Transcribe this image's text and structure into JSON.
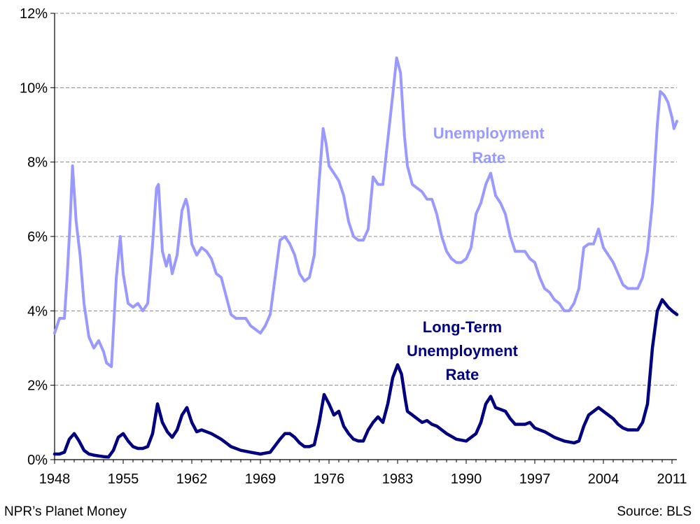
{
  "chart_data": {
    "type": "line",
    "title": "",
    "xlabel": "",
    "ylabel": "",
    "xlim": [
      1948,
      2011.5
    ],
    "ylim": [
      0,
      12
    ],
    "y_ticks": [
      "0%",
      "2%",
      "4%",
      "6%",
      "8%",
      "10%",
      "12%"
    ],
    "x_ticks": [
      "1948",
      "1955",
      "1962",
      "1969",
      "1976",
      "1983",
      "1990",
      "1997",
      "2004",
      "2011"
    ],
    "grid": "horizontal dashed",
    "series": [
      {
        "name": "Unemployment Rate",
        "label_lines": [
          "Unemployment",
          "Rate"
        ],
        "color": "#9999ff",
        "x": [
          1948.0,
          1948.5,
          1949.0,
          1949.3,
          1949.6,
          1949.83,
          1950.2,
          1950.6,
          1951.0,
          1951.5,
          1952.0,
          1952.5,
          1953.0,
          1953.3,
          1953.8,
          1954.3,
          1954.7,
          1955.0,
          1955.5,
          1956.0,
          1956.5,
          1957.0,
          1957.5,
          1958.0,
          1958.4,
          1958.6,
          1959.0,
          1959.4,
          1959.7,
          1960.0,
          1960.5,
          1961.0,
          1961.4,
          1961.6,
          1962.0,
          1962.5,
          1963.0,
          1963.5,
          1964.0,
          1964.5,
          1965.0,
          1965.5,
          1966.0,
          1966.5,
          1967.0,
          1967.5,
          1968.0,
          1968.5,
          1969.0,
          1969.5,
          1970.0,
          1970.5,
          1971.0,
          1971.5,
          1972.0,
          1972.5,
          1973.0,
          1973.5,
          1974.0,
          1974.5,
          1975.0,
          1975.4,
          1975.7,
          1976.0,
          1976.5,
          1977.0,
          1977.5,
          1978.0,
          1978.5,
          1979.0,
          1979.5,
          1980.0,
          1980.5,
          1981.0,
          1981.5,
          1982.0,
          1982.5,
          1982.9,
          1983.3,
          1983.7,
          1984.0,
          1984.5,
          1985.0,
          1985.5,
          1986.0,
          1986.5,
          1987.0,
          1987.5,
          1988.0,
          1988.5,
          1989.0,
          1989.5,
          1990.0,
          1990.5,
          1991.0,
          1991.5,
          1992.0,
          1992.5,
          1993.0,
          1993.5,
          1994.0,
          1994.5,
          1995.0,
          1995.5,
          1996.0,
          1996.5,
          1997.0,
          1997.5,
          1998.0,
          1998.5,
          1999.0,
          1999.5,
          2000.0,
          2000.5,
          2001.0,
          2001.5,
          2002.0,
          2002.5,
          2003.0,
          2003.5,
          2004.0,
          2004.5,
          2005.0,
          2005.5,
          2006.0,
          2006.5,
          2007.0,
          2007.5,
          2008.0,
          2008.5,
          2009.0,
          2009.5,
          2009.8,
          2010.2,
          2010.6,
          2011.0,
          2011.2,
          2011.5
        ],
        "values": [
          3.4,
          3.8,
          3.8,
          5.0,
          6.5,
          7.9,
          6.4,
          5.5,
          4.2,
          3.3,
          3.0,
          3.2,
          2.9,
          2.6,
          2.5,
          4.9,
          6.0,
          5.0,
          4.2,
          4.1,
          4.2,
          4.0,
          4.2,
          5.8,
          7.3,
          7.4,
          5.6,
          5.2,
          5.5,
          5.0,
          5.5,
          6.7,
          7.0,
          6.8,
          5.8,
          5.5,
          5.7,
          5.6,
          5.4,
          5.0,
          4.9,
          4.4,
          3.9,
          3.8,
          3.8,
          3.8,
          3.6,
          3.5,
          3.4,
          3.6,
          3.9,
          4.9,
          5.9,
          6.0,
          5.8,
          5.5,
          5.0,
          4.8,
          4.9,
          5.5,
          7.5,
          8.9,
          8.5,
          7.9,
          7.7,
          7.5,
          7.1,
          6.4,
          6.0,
          5.9,
          5.9,
          6.2,
          7.6,
          7.4,
          7.4,
          8.6,
          9.8,
          10.8,
          10.4,
          8.7,
          7.9,
          7.4,
          7.3,
          7.2,
          7.0,
          7.0,
          6.6,
          6.0,
          5.6,
          5.4,
          5.3,
          5.3,
          5.4,
          5.7,
          6.6,
          6.9,
          7.4,
          7.7,
          7.1,
          6.9,
          6.6,
          6.0,
          5.6,
          5.6,
          5.6,
          5.4,
          5.3,
          4.9,
          4.6,
          4.5,
          4.3,
          4.2,
          4.0,
          4.0,
          4.2,
          4.6,
          5.7,
          5.8,
          5.8,
          6.2,
          5.7,
          5.5,
          5.3,
          5.0,
          4.7,
          4.6,
          4.6,
          4.6,
          4.9,
          5.6,
          6.9,
          9.0,
          9.9,
          9.8,
          9.6,
          9.2,
          8.9,
          9.1
        ]
      },
      {
        "name": "Long-Term Unemployment Rate",
        "label_lines": [
          "Long-Term",
          "Unemployment",
          "Rate"
        ],
        "color": "#000080",
        "x": [
          1948.0,
          1948.5,
          1949.0,
          1949.5,
          1950.0,
          1950.5,
          1951.0,
          1951.5,
          1952.0,
          1952.5,
          1953.0,
          1953.5,
          1954.0,
          1954.5,
          1955.0,
          1955.5,
          1956.0,
          1956.5,
          1957.0,
          1957.5,
          1958.0,
          1958.5,
          1959.0,
          1959.5,
          1960.0,
          1960.5,
          1961.0,
          1961.5,
          1962.0,
          1962.5,
          1963.0,
          1964.0,
          1965.0,
          1966.0,
          1967.0,
          1968.0,
          1969.0,
          1970.0,
          1971.0,
          1971.5,
          1972.0,
          1972.5,
          1973.0,
          1973.5,
          1974.0,
          1974.5,
          1975.0,
          1975.5,
          1976.0,
          1976.5,
          1977.0,
          1977.5,
          1978.0,
          1978.5,
          1979.0,
          1979.5,
          1980.0,
          1980.5,
          1981.0,
          1981.5,
          1982.0,
          1982.5,
          1983.0,
          1983.4,
          1983.8,
          1984.0,
          1984.5,
          1985.0,
          1985.5,
          1986.0,
          1986.5,
          1987.0,
          1988.0,
          1989.0,
          1990.0,
          1991.0,
          1991.5,
          1992.0,
          1992.5,
          1993.0,
          1993.5,
          1994.0,
          1994.5,
          1995.0,
          1996.0,
          1996.5,
          1997.0,
          1998.0,
          1999.0,
          2000.0,
          2001.0,
          2001.5,
          2002.0,
          2002.5,
          2003.0,
          2003.5,
          2004.0,
          2004.5,
          2005.0,
          2005.5,
          2006.0,
          2006.5,
          2007.0,
          2007.5,
          2008.0,
          2008.5,
          2009.0,
          2009.5,
          2010.0,
          2010.3,
          2010.6,
          2011.0,
          2011.5
        ],
        "values": [
          0.15,
          0.15,
          0.2,
          0.55,
          0.7,
          0.5,
          0.25,
          0.15,
          0.12,
          0.1,
          0.08,
          0.07,
          0.25,
          0.6,
          0.7,
          0.5,
          0.35,
          0.3,
          0.3,
          0.35,
          0.7,
          1.5,
          1.0,
          0.75,
          0.6,
          0.8,
          1.2,
          1.4,
          1.0,
          0.75,
          0.8,
          0.7,
          0.55,
          0.35,
          0.25,
          0.2,
          0.15,
          0.2,
          0.55,
          0.7,
          0.7,
          0.6,
          0.45,
          0.35,
          0.35,
          0.4,
          1.0,
          1.75,
          1.5,
          1.2,
          1.3,
          0.9,
          0.7,
          0.55,
          0.5,
          0.5,
          0.8,
          1.0,
          1.15,
          1.0,
          1.5,
          2.2,
          2.55,
          2.3,
          1.6,
          1.3,
          1.2,
          1.1,
          1.0,
          1.05,
          0.95,
          0.9,
          0.7,
          0.55,
          0.5,
          0.7,
          1.0,
          1.5,
          1.7,
          1.4,
          1.35,
          1.3,
          1.1,
          0.95,
          0.95,
          1.0,
          0.85,
          0.75,
          0.6,
          0.5,
          0.45,
          0.5,
          0.9,
          1.2,
          1.3,
          1.4,
          1.3,
          1.2,
          1.1,
          0.95,
          0.85,
          0.8,
          0.8,
          0.8,
          1.0,
          1.5,
          3.0,
          4.0,
          4.3,
          4.2,
          4.1,
          4.0,
          3.9
        ]
      }
    ]
  },
  "footer": {
    "credit": "NPR’s Planet Money",
    "source": "Source: BLS"
  }
}
